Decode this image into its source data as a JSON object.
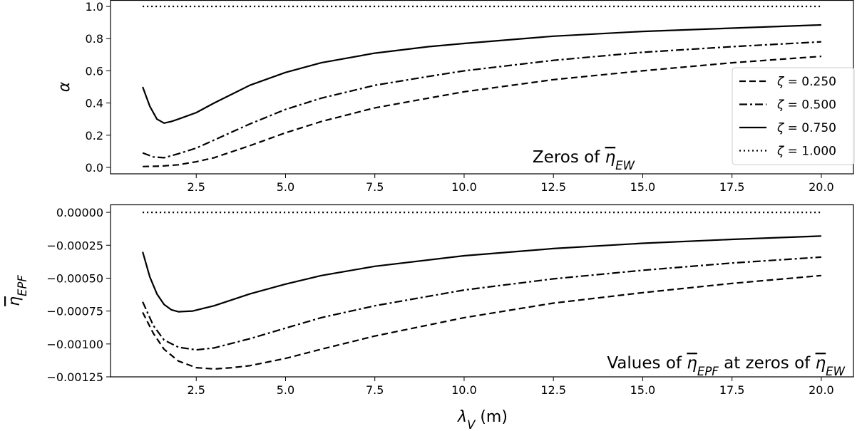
{
  "chart_data": [
    {
      "type": "line",
      "ylabel": "α",
      "xlabel": "",
      "xlim": [
        0.1,
        20.9
      ],
      "ylim": [
        -0.04,
        1.04
      ],
      "xticks": [
        "2.5",
        "5.0",
        "7.5",
        "10.0",
        "12.5",
        "15.0",
        "17.5",
        "20.0"
      ],
      "yticks": [
        "0.0",
        "0.2",
        "0.4",
        "0.6",
        "0.8",
        "1.0"
      ],
      "annotation": {
        "prefix": "Zeros of ",
        "symbol": "η",
        "sub": "EW"
      },
      "legend": "right",
      "series": [
        {
          "name": "ζ = 0.250",
          "style": "dashed",
          "x": [
            1.0,
            1.5,
            2.0,
            2.5,
            3.0,
            4.0,
            5.0,
            6.0,
            7.5,
            9.0,
            10.0,
            12.5,
            15.0,
            17.5,
            20.0
          ],
          "values": [
            0.005,
            0.008,
            0.016,
            0.035,
            0.06,
            0.135,
            0.215,
            0.285,
            0.37,
            0.43,
            0.47,
            0.545,
            0.6,
            0.65,
            0.69
          ]
        },
        {
          "name": "ζ = 0.500",
          "style": "dashdot",
          "x": [
            1.0,
            1.3,
            1.6,
            2.0,
            2.5,
            3.0,
            4.0,
            5.0,
            6.0,
            7.5,
            9.0,
            10.0,
            12.5,
            15.0,
            17.5,
            20.0
          ],
          "values": [
            0.09,
            0.065,
            0.06,
            0.085,
            0.12,
            0.17,
            0.27,
            0.36,
            0.43,
            0.51,
            0.565,
            0.6,
            0.665,
            0.715,
            0.75,
            0.78
          ]
        },
        {
          "name": "ζ = 0.750",
          "style": "solid",
          "x": [
            1.0,
            1.2,
            1.4,
            1.6,
            1.8,
            2.0,
            2.5,
            3.0,
            4.0,
            5.0,
            6.0,
            7.5,
            9.0,
            10.0,
            12.5,
            15.0,
            17.5,
            20.0
          ],
          "values": [
            0.5,
            0.38,
            0.3,
            0.275,
            0.285,
            0.3,
            0.34,
            0.4,
            0.51,
            0.59,
            0.65,
            0.71,
            0.75,
            0.77,
            0.815,
            0.845,
            0.865,
            0.885
          ]
        },
        {
          "name": "ζ = 1.000",
          "style": "dotted",
          "x": [
            1.0,
            20.0
          ],
          "values": [
            1.0,
            1.0
          ]
        }
      ]
    },
    {
      "type": "line",
      "ylabel": "η",
      "ylabel_sub": "EPF",
      "xlabel": "λ",
      "xlabel_sub": "V",
      "xlabel_unit": " (m)",
      "xlim": [
        0.1,
        20.9
      ],
      "ylim": [
        -0.00125,
        6e-05
      ],
      "xticks": [
        "2.5",
        "5.0",
        "7.5",
        "10.0",
        "12.5",
        "15.0",
        "17.5",
        "20.0"
      ],
      "yticks": [
        "0.00000",
        "−0.00025",
        "−0.00050",
        "−0.00075",
        "−0.00100",
        "−0.00125"
      ],
      "annotation": {
        "prefix": "Values of ",
        "symbol": "η",
        "sub": "EPF",
        "mid": " at zeros of ",
        "symbol2": "η",
        "sub2": "EW"
      },
      "series": [
        {
          "name": "ζ = 0.250",
          "style": "dashed",
          "x": [
            1.0,
            1.3,
            1.6,
            2.0,
            2.5,
            3.0,
            3.5,
            4.0,
            5.0,
            6.0,
            7.5,
            10.0,
            12.5,
            15.0,
            17.5,
            20.0
          ],
          "values": [
            -0.00076,
            -0.00092,
            -0.00104,
            -0.00113,
            -0.00118,
            -0.00119,
            -0.00118,
            -0.001165,
            -0.00111,
            -0.00104,
            -0.00094,
            -0.0008,
            -0.00069,
            -0.00061,
            -0.00054,
            -0.00048
          ]
        },
        {
          "name": "ζ = 0.500",
          "style": "dashdot",
          "x": [
            1.0,
            1.3,
            1.6,
            2.0,
            2.5,
            3.0,
            4.0,
            5.0,
            6.0,
            7.5,
            10.0,
            12.5,
            15.0,
            17.5,
            20.0
          ],
          "values": [
            -0.00068,
            -0.00086,
            -0.00097,
            -0.001025,
            -0.001045,
            -0.00103,
            -0.00096,
            -0.00088,
            -0.0008,
            -0.00071,
            -0.00059,
            -0.000505,
            -0.00044,
            -0.000385,
            -0.00034
          ]
        },
        {
          "name": "ζ = 0.750",
          "style": "solid",
          "x": [
            1.0,
            1.2,
            1.4,
            1.6,
            1.8,
            2.0,
            2.4,
            3.0,
            4.0,
            5.0,
            6.0,
            7.5,
            10.0,
            12.5,
            15.0,
            17.5,
            20.0
          ],
          "values": [
            -0.0003,
            -0.00049,
            -0.00062,
            -0.0007,
            -0.00074,
            -0.000755,
            -0.00075,
            -0.00071,
            -0.00062,
            -0.000545,
            -0.00048,
            -0.00041,
            -0.00033,
            -0.000275,
            -0.000235,
            -0.000205,
            -0.00018
          ]
        },
        {
          "name": "ζ = 1.000",
          "style": "dotted",
          "x": [
            1.0,
            20.0
          ],
          "values": [
            0.0,
            0.0
          ]
        }
      ]
    }
  ]
}
